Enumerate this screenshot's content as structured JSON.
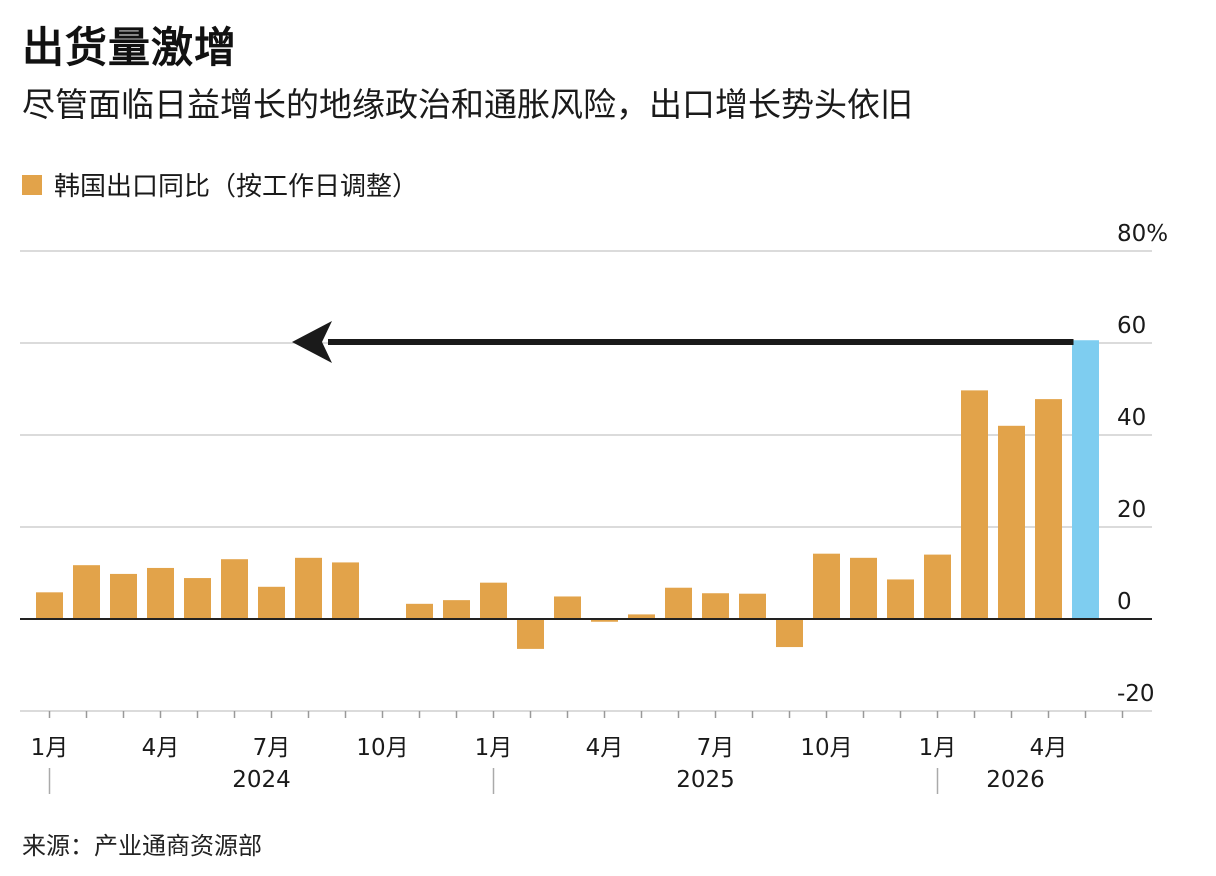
{
  "header": {
    "title": "出货量激增",
    "subtitle": "尽管面临日益增长的地缘政治和通胀风险，出口增长势头依旧"
  },
  "legend": {
    "label": "韩国出口同比（按工作日调整）"
  },
  "source": "来源：产业通商资源部",
  "colors": {
    "bar": "#E2A34A",
    "highlight": "#7ECDF0",
    "grid": "#CFCFCF",
    "zero": "#222222",
    "arrow": "#1A1A1A"
  },
  "chart_data": {
    "type": "bar",
    "series": [
      {
        "values": [
          5.8,
          11.7,
          9.8,
          11.1,
          8.9,
          13.0,
          7.0,
          13.3,
          12.3,
          null,
          3.3,
          4.1,
          7.9,
          -6.5,
          4.9,
          -0.6,
          1.0,
          6.8,
          5.6,
          5.5,
          -6.1,
          14.2,
          13.3,
          8.6,
          14.0,
          49.7,
          42.0,
          47.8,
          60.6
        ],
        "highlight_last": true
      }
    ],
    "month_ticks": [
      {
        "index": 0,
        "label": "1月"
      },
      {
        "index": 3,
        "label": "4月"
      },
      {
        "index": 6,
        "label": "7月"
      },
      {
        "index": 9,
        "label": "10月"
      },
      {
        "index": 12,
        "label": "1月"
      },
      {
        "index": 15,
        "label": "4月"
      },
      {
        "index": 18,
        "label": "7月"
      },
      {
        "index": 21,
        "label": "10月"
      },
      {
        "index": 24,
        "label": "1月"
      },
      {
        "index": 27,
        "label": "4月"
      }
    ],
    "year_labels": [
      {
        "start_index": 0,
        "label": "2024"
      },
      {
        "start_index": 12,
        "label": "2025"
      },
      {
        "start_index": 24,
        "label": "2026"
      }
    ],
    "yticks": [
      {
        "value": 80,
        "label": "80%"
      },
      {
        "value": 60,
        "label": "60"
      },
      {
        "value": 40,
        "label": "40"
      },
      {
        "value": 20,
        "label": "20"
      },
      {
        "value": 0,
        "label": "0"
      },
      {
        "value": -20,
        "label": "-20"
      }
    ],
    "ylim": [
      -20,
      80
    ],
    "annotation": {
      "type": "arrow",
      "from_index": 28,
      "to_index": 6.5,
      "at_value": 60
    }
  }
}
